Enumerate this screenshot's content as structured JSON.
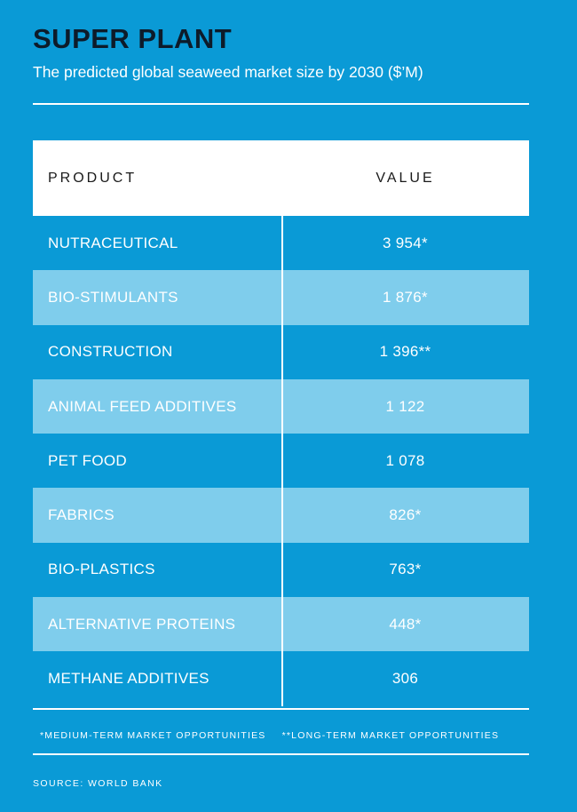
{
  "title": "SUPER PLANT",
  "subtitle": "The predicted global seaweed market size by 2030 ($’M)",
  "table": {
    "headers": {
      "product": "PRODUCT",
      "value": "VALUE"
    },
    "rows": [
      {
        "product": "NUTRACEUTICAL",
        "value": "3 954*"
      },
      {
        "product": "BIO-STIMULANTS",
        "value": "1 876*"
      },
      {
        "product": "CONSTRUCTION",
        "value": "1 396**"
      },
      {
        "product": "ANIMAL FEED ADDITIVES",
        "value": "1 122"
      },
      {
        "product": "PET FOOD",
        "value": "1 078"
      },
      {
        "product": "FABRICS",
        "value": "826*"
      },
      {
        "product": "BIO-PLASTICS",
        "value": "763*"
      },
      {
        "product": "ALTERNATIVE PROTEINS",
        "value": "448*"
      },
      {
        "product": "METHANE ADDITIVES",
        "value": "306"
      }
    ]
  },
  "footnotes": {
    "medium": "*MEDIUM-TERM MARKET OPPORTUNITIES",
    "long": "**LONG-TERM MARKET OPPORTUNITIES"
  },
  "source": "SOURCE: WORLD BANK",
  "colors": {
    "background": "#0a9ad6",
    "shaded_row": "#7fcdec",
    "title": "#0d1b2a"
  },
  "chart_data": {
    "type": "table",
    "title": "SUPER PLANT",
    "subtitle": "The predicted global seaweed market size by 2030 ($’M)",
    "columns": [
      "PRODUCT",
      "VALUE"
    ],
    "categories": [
      "NUTRACEUTICAL",
      "BIO-STIMULANTS",
      "CONSTRUCTION",
      "ANIMAL FEED ADDITIVES",
      "PET FOOD",
      "FABRICS",
      "BIO-PLASTICS",
      "ALTERNATIVE PROTEINS",
      "METHANE ADDITIVES"
    ],
    "values": [
      3954,
      1876,
      1396,
      1122,
      1078,
      826,
      763,
      448,
      306
    ]
  }
}
